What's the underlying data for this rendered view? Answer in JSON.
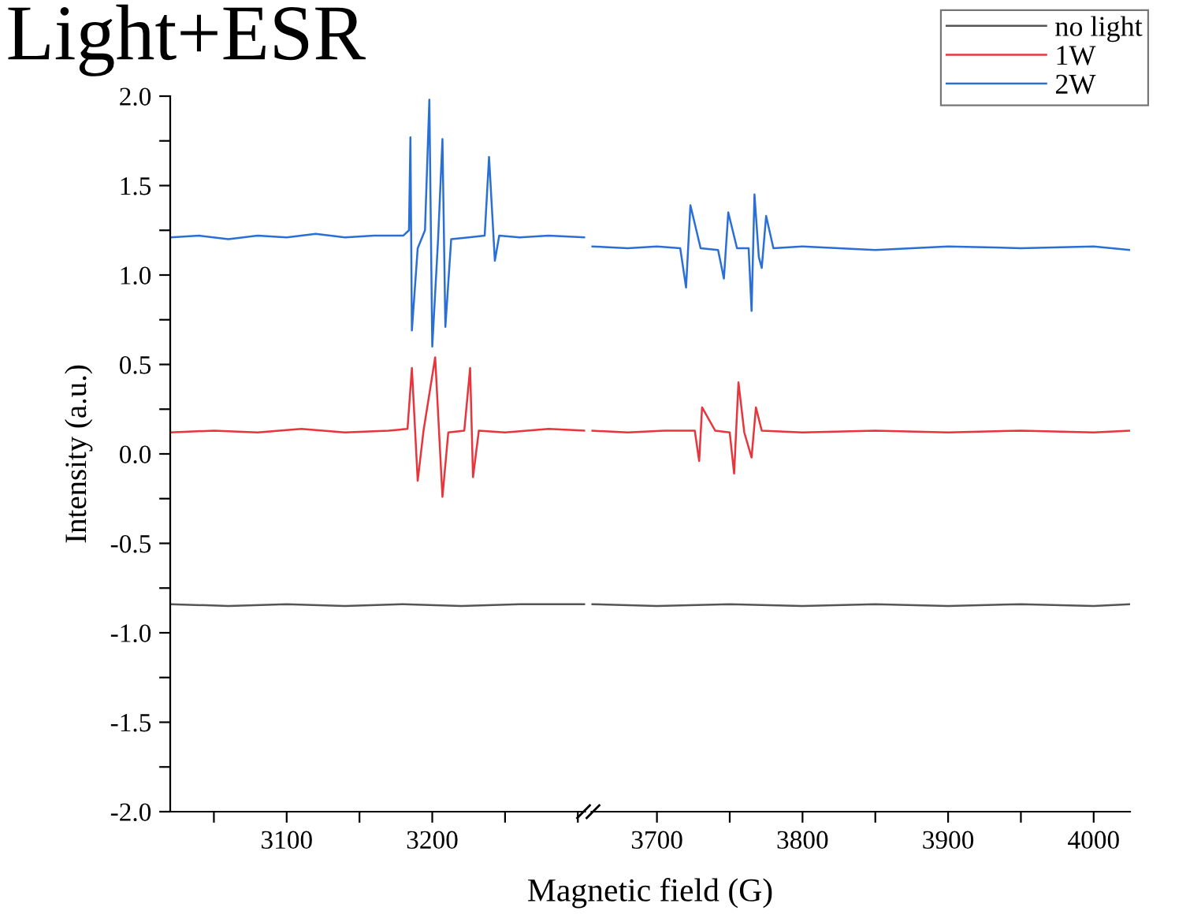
{
  "chart_data": [
    {
      "type": "line",
      "title": "Light+ESR",
      "ylabel": "Intensity (a.u.)",
      "xlabel": "Magnetic field (G)",
      "xlim": [
        3020,
        3305
      ],
      "ylim": [
        -2.0,
        2.0
      ],
      "xticks": [
        {
          "value": 3050,
          "label": null
        },
        3100,
        {
          "value": 3150,
          "label": null
        },
        3200,
        {
          "value": 3250,
          "label": null
        },
        {
          "value": 3300,
          "label": null
        }
      ],
      "yticks": [
        {
          "value": -2.0,
          "label": "-2.0"
        },
        {
          "value": -1.75,
          "label": null
        },
        {
          "value": -1.5,
          "label": "-1.5"
        },
        {
          "value": -1.25,
          "label": null
        },
        {
          "value": -1.0,
          "label": "-1.0"
        },
        {
          "value": -0.75,
          "label": null
        },
        {
          "value": -0.5,
          "label": "-0.5"
        },
        {
          "value": -0.25,
          "label": null
        },
        {
          "value": 0.0,
          "label": "0.0"
        },
        {
          "value": 0.25,
          "label": null
        },
        {
          "value": 0.5,
          "label": "0.5"
        },
        {
          "value": 0.75,
          "label": null
        },
        {
          "value": 1.0,
          "label": "1.0"
        },
        {
          "value": 1.25,
          "label": null
        },
        {
          "value": 1.5,
          "label": "1.5"
        },
        {
          "value": 1.75,
          "label": null
        },
        {
          "value": 2.0,
          "label": "2.0"
        }
      ],
      "grid": false,
      "legend": false,
      "series": [
        {
          "color": "#555555",
          "x": [
            3020,
            3060,
            3100,
            3140,
            3180,
            3220,
            3260,
            3305
          ],
          "values": [
            -0.84,
            -0.85,
            -0.84,
            -0.85,
            -0.84,
            -0.85,
            -0.84,
            -0.84
          ]
        },
        {
          "color": "#e8343a",
          "x": [
            3020,
            3050,
            3080,
            3110,
            3140,
            3170,
            3183,
            3186,
            3190,
            3194,
            3202,
            3207,
            3211,
            3222,
            3226,
            3228,
            3232,
            3250,
            3280,
            3305
          ],
          "values": [
            0.12,
            0.13,
            0.12,
            0.14,
            0.12,
            0.13,
            0.14,
            0.48,
            -0.15,
            0.13,
            0.54,
            -0.24,
            0.12,
            0.13,
            0.48,
            -0.13,
            0.13,
            0.12,
            0.14,
            0.13
          ]
        },
        {
          "color": "#2a6fd6",
          "x": [
            3020,
            3040,
            3060,
            3080,
            3100,
            3120,
            3140,
            3160,
            3180,
            3184,
            3185,
            3186,
            3190,
            3195,
            3198,
            3200,
            3204,
            3207,
            3209,
            3213,
            3225,
            3236,
            3239,
            3243,
            3246,
            3260,
            3280,
            3305
          ],
          "values": [
            1.21,
            1.22,
            1.2,
            1.22,
            1.21,
            1.23,
            1.21,
            1.22,
            1.22,
            1.25,
            1.77,
            0.69,
            1.15,
            1.25,
            1.98,
            0.6,
            1.2,
            1.76,
            0.71,
            1.2,
            1.21,
            1.22,
            1.66,
            1.08,
            1.22,
            1.21,
            1.22,
            1.21
          ]
        }
      ]
    },
    {
      "type": "line",
      "tick_labels": "x",
      "xlim": [
        3655,
        4025
      ],
      "ylim": [
        -2.0,
        2.0
      ],
      "xticks": [
        3700,
        {
          "value": 3750,
          "label": null
        },
        3800,
        {
          "value": 3850,
          "label": null
        },
        3900,
        {
          "value": 3950,
          "label": null
        },
        4000
      ],
      "grid": false,
      "legend": "top right",
      "series": [
        {
          "name": "no light",
          "color": "#555555",
          "x": [
            3655,
            3700,
            3750,
            3800,
            3850,
            3900,
            3950,
            4000,
            4025
          ],
          "values": [
            -0.84,
            -0.85,
            -0.84,
            -0.85,
            -0.84,
            -0.85,
            -0.84,
            -0.85,
            -0.84
          ]
        },
        {
          "name": "1W",
          "color": "#e8343a",
          "x": [
            3655,
            3680,
            3705,
            3726,
            3729,
            3731,
            3740,
            3750,
            3753,
            3756,
            3760,
            3765,
            3768,
            3772,
            3800,
            3850,
            3900,
            3950,
            4000,
            4025
          ],
          "values": [
            0.13,
            0.12,
            0.13,
            0.13,
            -0.04,
            0.26,
            0.13,
            0.12,
            -0.11,
            0.4,
            0.12,
            -0.02,
            0.26,
            0.13,
            0.12,
            0.13,
            0.12,
            0.13,
            0.12,
            0.13
          ]
        },
        {
          "name": "2W",
          "color": "#2a6fd6",
          "x": [
            3655,
            3680,
            3700,
            3716,
            3720,
            3723,
            3730,
            3742,
            3746,
            3749,
            3755,
            3763,
            3765,
            3767,
            3770,
            3772,
            3775,
            3780,
            3800,
            3850,
            3900,
            3950,
            4000,
            4025
          ],
          "values": [
            1.16,
            1.15,
            1.16,
            1.15,
            0.93,
            1.39,
            1.15,
            1.14,
            0.98,
            1.35,
            1.15,
            1.15,
            0.8,
            1.45,
            1.1,
            1.04,
            1.33,
            1.15,
            1.16,
            1.14,
            1.16,
            1.15,
            1.16,
            1.14
          ]
        }
      ]
    }
  ]
}
